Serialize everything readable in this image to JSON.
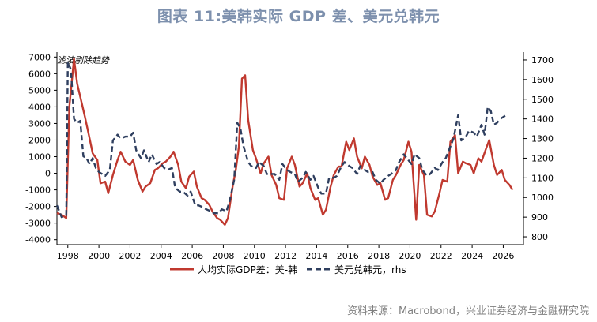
{
  "header": {
    "title": "图表 11:美韩实际 GDP 差、美元兑韩元"
  },
  "source": {
    "text": "资料来源：Macrobond，兴业证券经济与金融研究院"
  },
  "colors": {
    "title": "#7d90ad",
    "gdp_line": "#c0392f",
    "fx_line": "#2f3f5f"
  },
  "chart_data": {
    "type": "line",
    "annotation": "滤波剔除趋势",
    "xlim": [
      1997.3,
      2027.3
    ],
    "x_ticks": [
      "1998",
      "2000",
      "2002",
      "2004",
      "2006",
      "2008",
      "2010",
      "2012",
      "2014",
      "2016",
      "2018",
      "2020",
      "2022",
      "2024",
      "2026"
    ],
    "y_left": {
      "lim": [
        -4300,
        7300
      ],
      "ticks": [
        "7000",
        "6000",
        "5000",
        "4000",
        "3000",
        "2000",
        "1000",
        "0",
        "-1000",
        "-2000",
        "-3000",
        "-4000"
      ]
    },
    "y_right": {
      "lim": [
        760,
        1740
      ],
      "ticks": [
        "1700",
        "1600",
        "1500",
        "1400",
        "1300",
        "1200",
        "1100",
        "1000",
        "900",
        "800"
      ]
    },
    "series": [
      {
        "name": "人均实际GDP差：美-韩",
        "axis": "left",
        "style": "solid",
        "x": [
          1997.3,
          1997.6,
          1997.9,
          1998.1,
          1998.4,
          1998.6,
          1998.9,
          1999.1,
          1999.4,
          1999.6,
          1999.9,
          2000.1,
          2000.4,
          2000.6,
          2000.9,
          2001.2,
          2001.4,
          2001.7,
          2002.0,
          2002.2,
          2002.5,
          2002.8,
          2003.0,
          2003.3,
          2003.6,
          2003.8,
          2004.1,
          2004.3,
          2004.6,
          2004.8,
          2005.1,
          2005.3,
          2005.6,
          2005.8,
          2006.1,
          2006.3,
          2006.6,
          2006.8,
          2007.1,
          2007.3,
          2007.6,
          2007.8,
          2008.1,
          2008.3,
          2008.6,
          2008.8,
          2009.0,
          2009.2,
          2009.4,
          2009.6,
          2009.9,
          2010.1,
          2010.4,
          2010.6,
          2010.9,
          2011.1,
          2011.4,
          2011.6,
          2011.9,
          2012.1,
          2012.4,
          2012.6,
          2012.9,
          2013.1,
          2013.4,
          2013.6,
          2013.9,
          2014.1,
          2014.4,
          2014.6,
          2014.9,
          2015.1,
          2015.4,
          2015.6,
          2015.9,
          2016.1,
          2016.4,
          2016.6,
          2016.9,
          2017.1,
          2017.4,
          2017.6,
          2017.9,
          2018.1,
          2018.4,
          2018.6,
          2018.9,
          2019.1,
          2019.4,
          2019.6,
          2019.9,
          2020.1,
          2020.4,
          2020.6,
          2020.9,
          2021.1,
          2021.4,
          2021.6,
          2021.9,
          2022.1,
          2022.4,
          2022.6,
          2022.9,
          2023.1,
          2023.4,
          2023.6,
          2023.9,
          2024.1,
          2024.4,
          2024.6,
          2024.9,
          2025.1,
          2025.4,
          2025.6,
          2025.9,
          2026.1,
          2026.4,
          2026.6
        ],
        "values": [
          -2400,
          -2500,
          -2700,
          4000,
          6900,
          5400,
          4200,
          3400,
          2100,
          1200,
          800,
          -600,
          -500,
          -1200,
          -100,
          800,
          1300,
          700,
          500,
          800,
          -400,
          -1100,
          -800,
          -600,
          200,
          300,
          600,
          700,
          1000,
          1300,
          500,
          -500,
          -900,
          -200,
          100,
          -800,
          -1500,
          -1600,
          -1900,
          -2300,
          -2700,
          -2800,
          -3100,
          -2700,
          -800,
          200,
          1600,
          5700,
          5900,
          3200,
          1400,
          900,
          0,
          600,
          1000,
          -100,
          -700,
          -1500,
          -1600,
          300,
          1000,
          500,
          -800,
          -600,
          0,
          -900,
          -1600,
          -1500,
          -2500,
          -2200,
          -800,
          -100,
          400,
          400,
          1900,
          1400,
          2100,
          1000,
          300,
          1000,
          500,
          -200,
          -700,
          -600,
          -1600,
          -1500,
          -400,
          -100,
          500,
          800,
          1900,
          1300,
          -2800,
          500,
          -100,
          -2500,
          -2600,
          -2300,
          -1200,
          -400,
          -500,
          1900,
          2300,
          0,
          700,
          600,
          500,
          0,
          900,
          700,
          1500,
          2000,
          500,
          -100,
          200,
          -400,
          -700,
          -1000
        ],
        "note": "values in left-axis units"
      },
      {
        "name": "美元兑韩元，rhs",
        "axis": "right",
        "style": "dashed",
        "x": [
          1997.3,
          1997.6,
          1997.9,
          1998.0,
          1998.2,
          1998.4,
          1998.6,
          1998.8,
          1999.0,
          1999.2,
          1999.4,
          1999.6,
          1999.8,
          2000.0,
          2000.2,
          2000.4,
          2000.7,
          2000.9,
          2001.2,
          2001.4,
          2001.7,
          2002.0,
          2002.2,
          2002.4,
          2002.7,
          2002.9,
          2003.2,
          2003.4,
          2003.7,
          2003.9,
          2004.2,
          2004.4,
          2004.7,
          2004.9,
          2005.2,
          2005.4,
          2005.7,
          2005.9,
          2006.2,
          2006.4,
          2006.7,
          2006.9,
          2007.2,
          2007.4,
          2007.7,
          2007.9,
          2008.2,
          2008.4,
          2008.7,
          2008.9,
          2009.1,
          2009.3,
          2009.6,
          2009.8,
          2010.1,
          2010.3,
          2010.6,
          2010.8,
          2011.1,
          2011.3,
          2011.6,
          2011.8,
          2012.1,
          2012.3,
          2012.6,
          2012.8,
          2013.1,
          2013.3,
          2013.6,
          2013.8,
          2014.1,
          2014.3,
          2014.6,
          2014.8,
          2015.1,
          2015.3,
          2015.6,
          2015.8,
          2016.1,
          2016.3,
          2016.6,
          2016.8,
          2017.1,
          2017.3,
          2017.6,
          2017.8,
          2018.1,
          2018.3,
          2018.6,
          2018.8,
          2019.1,
          2019.3,
          2019.6,
          2019.8,
          2020.1,
          2020.3,
          2020.6,
          2020.8,
          2021.1,
          2021.3,
          2021.6,
          2021.8,
          2022.1,
          2022.3,
          2022.6,
          2022.8,
          2023.1,
          2023.3,
          2023.6,
          2023.8,
          2024.1,
          2024.3,
          2024.6,
          2024.8,
          2025.0,
          2025.2,
          2025.4,
          2025.6,
          2025.8,
          2026.0,
          2026.2
        ],
        "values": [
          960,
          900,
          910,
          1690,
          1650,
          1400,
          1380,
          1390,
          1210,
          1200,
          1170,
          1200,
          1150,
          1130,
          1120,
          1110,
          1140,
          1290,
          1320,
          1300,
          1310,
          1310,
          1330,
          1240,
          1200,
          1240,
          1180,
          1220,
          1170,
          1180,
          1150,
          1140,
          1150,
          1050,
          1030,
          1030,
          1010,
          1030,
          960,
          960,
          950,
          940,
          930,
          920,
          920,
          940,
          930,
          980,
          1090,
          1380,
          1350,
          1260,
          1180,
          1160,
          1150,
          1180,
          1160,
          1120,
          1120,
          1120,
          1090,
          1170,
          1140,
          1130,
          1120,
          1080,
          1100,
          1130,
          1090,
          1110,
          1050,
          1020,
          1020,
          1100,
          1100,
          1110,
          1160,
          1180,
          1160,
          1150,
          1120,
          1160,
          1140,
          1130,
          1130,
          1090,
          1070,
          1090,
          1110,
          1120,
          1140,
          1180,
          1220,
          1200,
          1170,
          1220,
          1200,
          1140,
          1110,
          1120,
          1150,
          1140,
          1180,
          1200,
          1260,
          1300,
          1420,
          1290,
          1310,
          1340,
          1330,
          1310,
          1370,
          1320,
          1460,
          1440,
          1370,
          1380,
          1400,
          1410,
          1420
        ],
        "note": "values in right-axis units"
      }
    ]
  }
}
